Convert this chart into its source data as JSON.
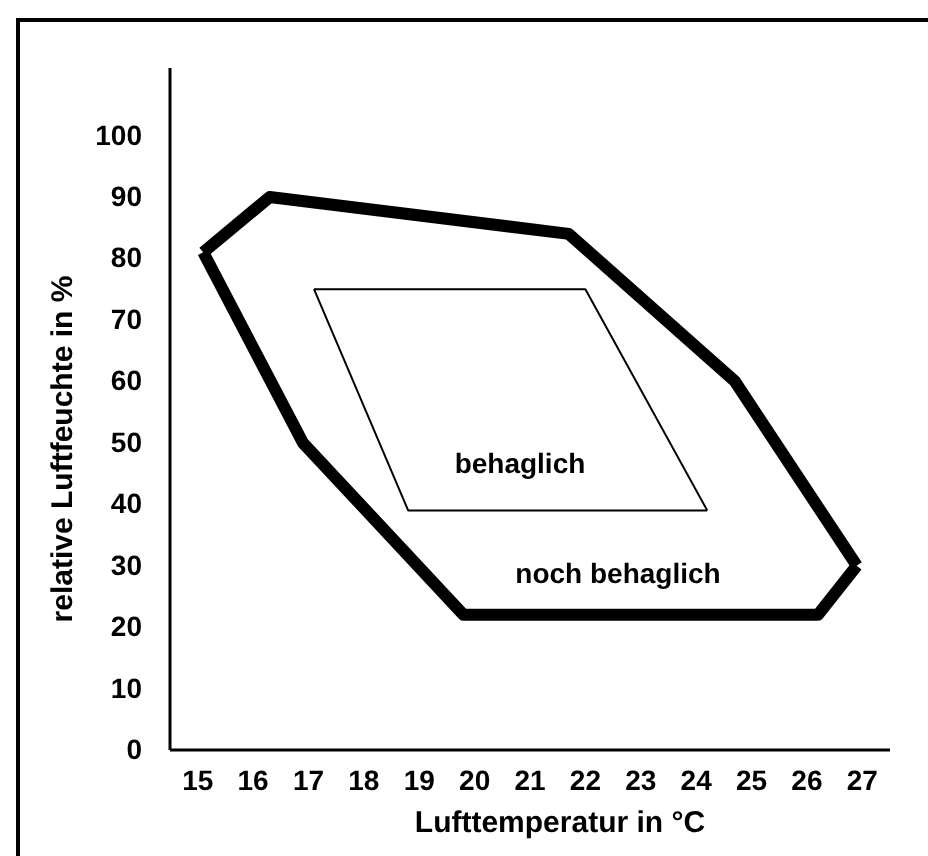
{
  "chart_data": {
    "type": "line",
    "xlabel": "Lufttemperatur in °C",
    "ylabel": "relative Luftfeuchte in %",
    "xlim": [
      14.5,
      27.5
    ],
    "ylim": [
      0,
      111
    ],
    "xticks": [
      15,
      16,
      17,
      18,
      19,
      20,
      21,
      22,
      23,
      24,
      25,
      26,
      27
    ],
    "yticks": [
      0,
      10,
      20,
      30,
      40,
      50,
      60,
      70,
      80,
      90,
      100
    ],
    "grid": false,
    "marker": "none",
    "line_style": "solid",
    "series": [
      {
        "color": "#000000",
        "x": [
          15.1,
          16.3,
          21.7,
          24.7,
          26.9
        ],
        "values": [
          81,
          90,
          84,
          60,
          30
        ]
      },
      {
        "color": "#000000",
        "x": [
          15.1,
          16.9,
          19.8,
          26.2,
          26.9
        ],
        "values": [
          81,
          50,
          22,
          22,
          30
        ]
      },
      {
        "color": "#000000",
        "x": [
          17.1,
          22.0,
          24.2
        ],
        "values": [
          75,
          75,
          39
        ]
      },
      {
        "color": "#000000",
        "x": [
          17.1,
          18.8,
          24.2
        ],
        "values": [
          75,
          39,
          39
        ]
      }
    ],
    "annotations": [
      "behaglich",
      "noch behaglich"
    ]
  }
}
